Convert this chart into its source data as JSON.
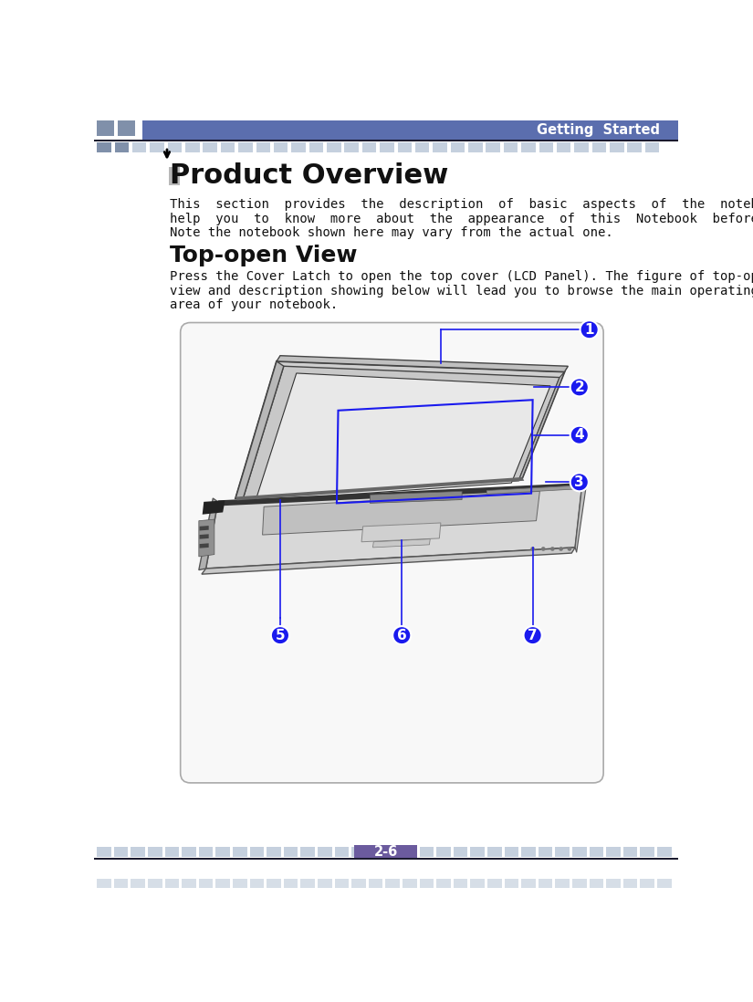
{
  "bg_color": "#ffffff",
  "header_color": "#5b6eae",
  "header_text": "Getting  Started",
  "header_text_color": "#ffffff",
  "tile_color": "#c5d0de",
  "tile_color_dark": "#8090aa",
  "footer_purple": "#6b5b9e",
  "footer_text": "2-6",
  "section_title": "Product Overview",
  "section_title_highlight": "#b8b8b8",
  "body_text_1": "This  section  provides  the  description  of  basic  aspects  of  the  notebook.    It  will",
  "body_text_2": "help  you  to  know  more  about  the  appearance  of  this  Notebook  before  using  it.",
  "body_text_3": "Note the notebook shown here may vary from the actual one.",
  "subtitle": "Top-open View",
  "sub_body_1": "Press the Cover Latch to open the top cover (LCD Panel). The figure of top-open",
  "sub_body_2": "view and description showing below will lead you to browse the main operating",
  "sub_body_3": "area of your notebook.",
  "label_fill": "#1a1aee",
  "label_text_color": "#ffffff",
  "line_color": "#1a1aee",
  "page_label": "2-6"
}
